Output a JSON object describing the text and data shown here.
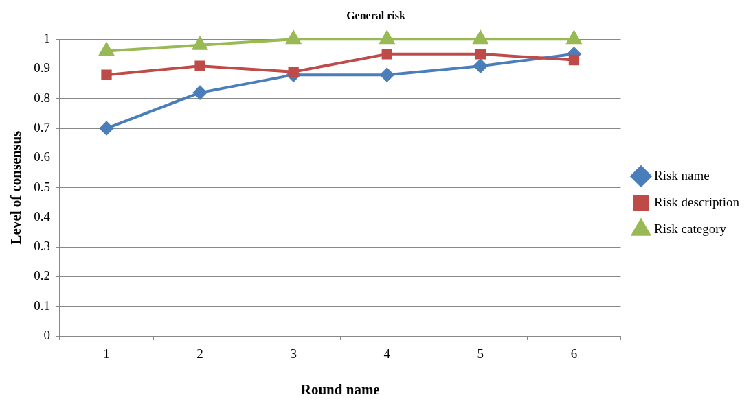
{
  "chart_data": {
    "type": "line",
    "title": "General risk",
    "xlabel": "Round name",
    "ylabel": "Level of consensus",
    "categories": [
      "1",
      "2",
      "3",
      "4",
      "5",
      "6"
    ],
    "series": [
      {
        "name": "Risk name",
        "color": "#4a7ebb",
        "marker": "diamond",
        "values": [
          0.7,
          0.82,
          0.88,
          0.88,
          0.91,
          0.95
        ]
      },
      {
        "name": "Risk description",
        "color": "#be4b48",
        "marker": "square",
        "values": [
          0.88,
          0.91,
          0.89,
          0.95,
          0.95,
          0.93
        ]
      },
      {
        "name": "Risk category",
        "color": "#98b954",
        "marker": "triangle",
        "values": [
          0.96,
          0.98,
          1,
          1,
          1,
          1
        ]
      }
    ],
    "ylim": [
      0,
      1
    ],
    "yticks": [
      0,
      0.1,
      0.2,
      0.3,
      0.4,
      0.5,
      0.6,
      0.7,
      0.8,
      0.9,
      1
    ],
    "grid": "y",
    "legend": "right",
    "line_style": "solid"
  }
}
